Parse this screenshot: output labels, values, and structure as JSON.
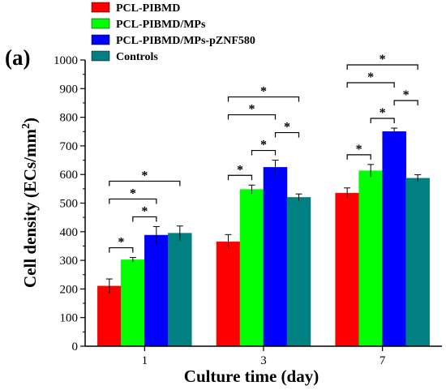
{
  "panel_label": "(a)",
  "chart_data": {
    "type": "bar",
    "categories": [
      "1",
      "3",
      "7"
    ],
    "xlabel": "Culture time (day)",
    "ylabel": "Cell density (ECs/mm",
    "ylabel_sup": "2",
    "ylabel_end": ")",
    "ylim": [
      0,
      1000
    ],
    "yticks": [
      0,
      100,
      200,
      300,
      400,
      500,
      600,
      700,
      800,
      900,
      1000
    ],
    "grid": false,
    "legend_position": "top-left",
    "series": [
      {
        "name": "PCL-PIBMD",
        "color": "#ff0000",
        "values": [
          210,
          365,
          535
        ],
        "errors": [
          25,
          25,
          18
        ]
      },
      {
        "name": "PCL-PIBMD/MPs",
        "color": "#00ff00",
        "values": [
          302,
          548,
          613
        ],
        "errors": [
          8,
          15,
          22
        ]
      },
      {
        "name": "PCL-PIBMD/MPs-pZNF580",
        "color": "#0000ff",
        "values": [
          388,
          625,
          750
        ],
        "errors": [
          30,
          25,
          12
        ]
      },
      {
        "name": "Controls",
        "color": "#008080",
        "values": [
          395,
          520,
          587
        ],
        "errors": [
          25,
          12,
          12
        ]
      }
    ],
    "significance": [
      {
        "group": 0,
        "from": 0,
        "to": 1,
        "label": "*"
      },
      {
        "group": 0,
        "from": 1,
        "to": 2,
        "label": "*"
      },
      {
        "group": 0,
        "from": 0,
        "to": 2,
        "label": "*"
      },
      {
        "group": 0,
        "from": 0,
        "to": 3,
        "label": "*"
      },
      {
        "group": 1,
        "from": 0,
        "to": 1,
        "label": "*"
      },
      {
        "group": 1,
        "from": 1,
        "to": 2,
        "label": "*"
      },
      {
        "group": 1,
        "from": 2,
        "to": 3,
        "label": "*"
      },
      {
        "group": 1,
        "from": 0,
        "to": 2,
        "label": "*"
      },
      {
        "group": 1,
        "from": 0,
        "to": 3,
        "label": "*"
      },
      {
        "group": 2,
        "from": 0,
        "to": 1,
        "label": "*"
      },
      {
        "group": 2,
        "from": 1,
        "to": 2,
        "label": "*"
      },
      {
        "group": 2,
        "from": 2,
        "to": 3,
        "label": "*"
      },
      {
        "group": 2,
        "from": 0,
        "to": 2,
        "label": "*"
      },
      {
        "group": 2,
        "from": 0,
        "to": 3,
        "label": "*"
      }
    ]
  }
}
